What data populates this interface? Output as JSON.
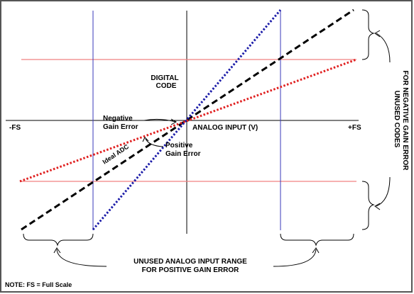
{
  "labels": {
    "digital_code_line1": "DIGITAL",
    "digital_code_line2": "CODE",
    "analog_input": "ANALOG INPUT (V)",
    "minus_fs": "-FS",
    "plus_fs": "+FS",
    "negative_gain_line1": "Negative",
    "negative_gain_line2": "Gain Error",
    "ideal_adc": "Ideal ADC",
    "positive_gain_line1": "Positive",
    "positive_gain_line2": "Gain Error",
    "unused_codes_line1": "UNUSED CODES",
    "unused_codes_line2": "FOR NEGATIVE GAIN ERROR",
    "unused_analog_line1": "UNUSED ANALOG INPUT RANGE",
    "unused_analog_line2": "FOR POSITIVE GAIN ERROR",
    "note": "NOTE: FS = Full Scale"
  },
  "colors": {
    "ideal": "#000000",
    "positive_gain": "#1a1aa8",
    "negative_gain": "#e02020",
    "guide_red": "#f08080",
    "guide_blue": "#3a3ab8",
    "border": "#555555"
  },
  "series": [
    {
      "name": "Ideal ADC",
      "style": "dashed-black"
    },
    {
      "name": "Positive Gain Error",
      "style": "dotted-blue"
    },
    {
      "name": "Negative Gain Error",
      "style": "dotted-red"
    }
  ]
}
